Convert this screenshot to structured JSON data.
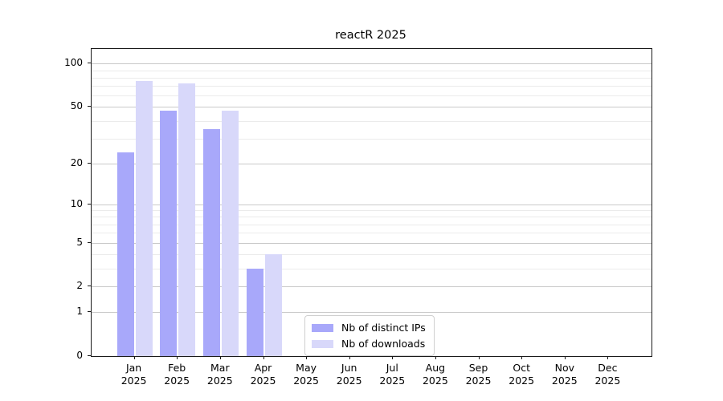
{
  "title": "reactR 2025",
  "chart_data": {
    "type": "bar",
    "title": "reactR 2025",
    "xlabel": "",
    "ylabel": "",
    "categories": [
      "Jan 2025",
      "Feb 2025",
      "Mar 2025",
      "Apr 2025",
      "May 2025",
      "Jun 2025",
      "Jul 2025",
      "Aug 2025",
      "Sep 2025",
      "Oct 2025",
      "Nov 2025",
      "Dec 2025"
    ],
    "series": [
      {
        "name": "Nb of distinct IPs",
        "color": "#a8a8fa",
        "values": [
          24,
          47,
          35,
          3,
          0,
          0,
          0,
          0,
          0,
          0,
          0,
          0
        ]
      },
      {
        "name": "Nb of downloads",
        "color": "#d8d8fa",
        "values": [
          76,
          73,
          47,
          4,
          0,
          0,
          0,
          0,
          0,
          0,
          0,
          0
        ]
      }
    ],
    "yscale": "log1p",
    "ylim": [
      0,
      110
    ],
    "yticks": [
      0,
      1,
      2,
      5,
      10,
      20,
      50,
      100
    ],
    "yticks_minor": [
      3,
      4,
      6,
      7,
      8,
      9,
      30,
      40,
      60,
      70,
      80,
      90
    ],
    "grid": "on",
    "legend_position": "lower-center"
  },
  "colors": {
    "bar_dark": "#a8a8fa",
    "bar_light": "#d8d8fa",
    "grid_major": "#c9c9c9",
    "grid_minor": "#ebebeb",
    "spine": "#1a1a1a",
    "legend_border": "#cfcfcf",
    "background": "#ffffff"
  }
}
